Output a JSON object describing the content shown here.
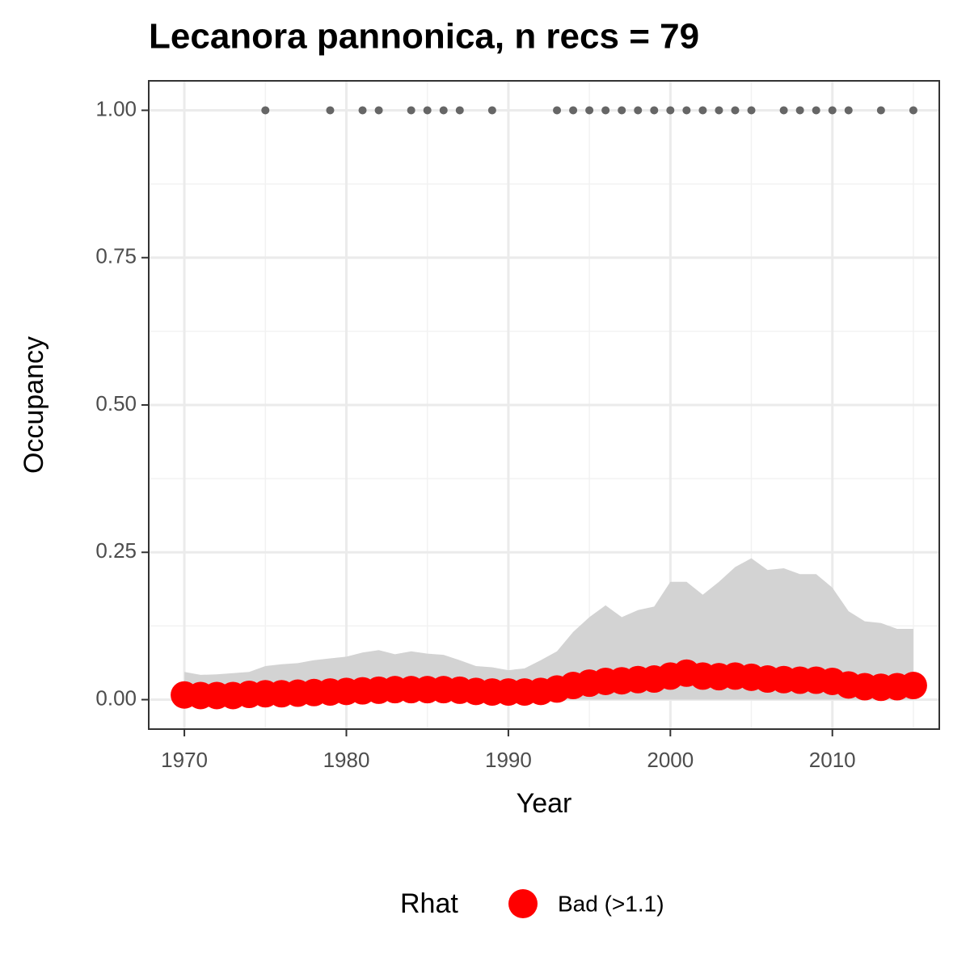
{
  "chart_data": {
    "type": "line",
    "title": "Lecanora pannonica, n recs = 79",
    "x_label": "Year",
    "y_label": "Occupancy",
    "legend_title": "Rhat",
    "x": [
      1970,
      1971,
      1972,
      1973,
      1974,
      1975,
      1976,
      1977,
      1978,
      1979,
      1980,
      1981,
      1982,
      1983,
      1984,
      1985,
      1986,
      1987,
      1988,
      1989,
      1990,
      1991,
      1992,
      1993,
      1994,
      1995,
      1996,
      1997,
      1998,
      1999,
      2000,
      2001,
      2002,
      2003,
      2004,
      2005,
      2006,
      2007,
      2008,
      2009,
      2010,
      2011,
      2012,
      2013,
      2014,
      2015
    ],
    "series": [
      {
        "name": "Bad (>1.1)",
        "color": "#ff0000",
        "values": [
          0.008,
          0.007,
          0.007,
          0.007,
          0.009,
          0.01,
          0.01,
          0.011,
          0.012,
          0.013,
          0.014,
          0.015,
          0.016,
          0.017,
          0.017,
          0.017,
          0.017,
          0.016,
          0.014,
          0.013,
          0.013,
          0.013,
          0.014,
          0.018,
          0.024,
          0.028,
          0.031,
          0.032,
          0.034,
          0.035,
          0.04,
          0.045,
          0.04,
          0.039,
          0.04,
          0.038,
          0.035,
          0.034,
          0.033,
          0.033,
          0.031,
          0.025,
          0.022,
          0.021,
          0.022,
          0.024
        ]
      }
    ],
    "ribbon": {
      "color": "#d3d3d3",
      "upper": [
        0.047,
        0.042,
        0.043,
        0.045,
        0.047,
        0.057,
        0.06,
        0.062,
        0.067,
        0.07,
        0.073,
        0.08,
        0.084,
        0.077,
        0.082,
        0.078,
        0.076,
        0.067,
        0.057,
        0.055,
        0.05,
        0.053,
        0.067,
        0.082,
        0.115,
        0.14,
        0.16,
        0.14,
        0.152,
        0.158,
        0.2,
        0.2,
        0.178,
        0.2,
        0.225,
        0.24,
        0.22,
        0.223,
        0.213,
        0.213,
        0.19,
        0.15,
        0.133,
        0.13,
        0.12,
        0.12
      ],
      "lower": [
        0,
        0,
        0,
        0,
        0,
        0,
        0,
        0,
        0,
        0,
        0,
        0,
        0,
        0,
        0,
        0,
        0,
        0,
        0,
        0,
        0,
        0,
        0,
        0,
        0,
        0,
        0,
        0,
        0,
        0,
        0,
        0,
        0,
        0,
        0,
        0,
        0,
        0,
        0,
        0,
        0,
        0,
        0,
        0,
        0,
        0
      ]
    },
    "records": {
      "color": "#666666",
      "x": [
        1975,
        1979,
        1981,
        1982,
        1984,
        1985,
        1986,
        1987,
        1989,
        1993,
        1994,
        1995,
        1996,
        1997,
        1998,
        1999,
        2000,
        2001,
        2002,
        2003,
        2004,
        2005,
        2007,
        2008,
        2009,
        2010,
        2011,
        2013,
        2015
      ],
      "values": [
        1,
        1,
        1,
        1,
        1,
        1,
        1,
        1,
        1,
        1,
        1,
        1,
        1,
        1,
        1,
        1,
        1,
        1,
        1,
        1,
        1,
        1,
        1,
        1,
        1,
        1,
        1,
        1,
        1
      ]
    },
    "xlim": [
      1967.8,
      2016.6
    ],
    "ylim": [
      -0.05,
      1.05
    ],
    "xticks": [
      1970,
      1980,
      1990,
      2000,
      2010
    ],
    "xminor": [
      1975,
      1985,
      1995,
      2005,
      2015
    ],
    "yticks": [
      {
        "value": 0,
        "label": "0.00"
      },
      {
        "value": 0.25,
        "label": "0.25"
      },
      {
        "value": 0.5,
        "label": "0.50"
      },
      {
        "value": 0.75,
        "label": "0.75"
      },
      {
        "value": 1,
        "label": "1.00"
      }
    ],
    "yminor": [
      0.125,
      0.375,
      0.625,
      0.875
    ],
    "grid": true
  }
}
